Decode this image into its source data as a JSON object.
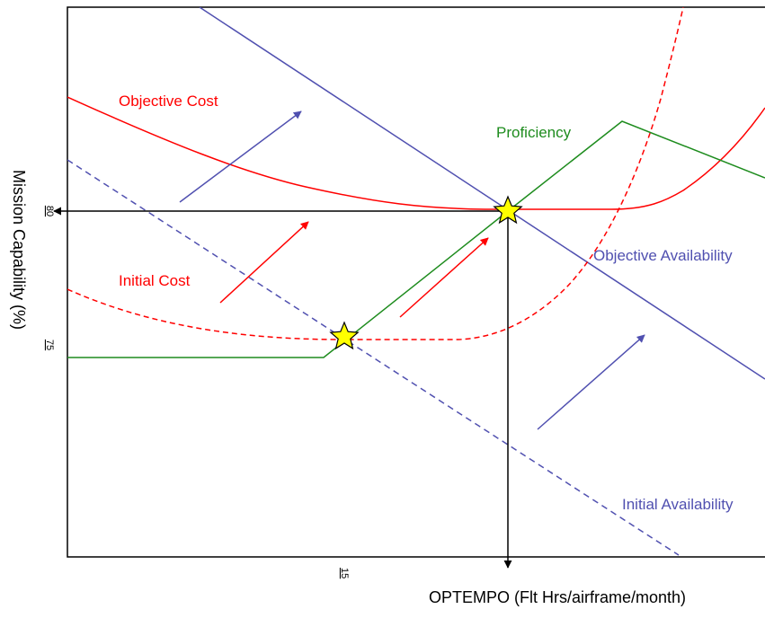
{
  "axes": {
    "x_title": "OPTEMPO (Flt Hrs/airframe/month)",
    "y_title": "Mission Capability (%)",
    "x_tick": "15",
    "y_ticks": [
      "80",
      "75"
    ]
  },
  "labels": {
    "objective_cost": "Objective Cost",
    "initial_cost": "Initial Cost",
    "proficiency": "Proficiency",
    "objective_availability": "Objective Availability",
    "initial_availability": "Initial Availability"
  },
  "colors": {
    "cost": "#ff0000",
    "availability": "#5050b0",
    "proficiency": "#1e8c1e",
    "star_fill": "#ffff00",
    "axis": "#000000"
  },
  "icons": {
    "equilibrium_marker": "star-icon",
    "shift_indicator": "arrow-icon"
  }
}
